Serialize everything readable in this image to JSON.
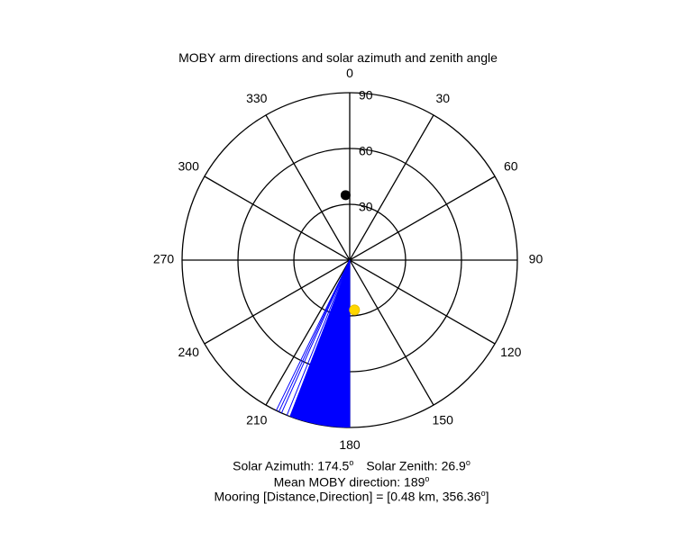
{
  "chart_data": {
    "type": "polar",
    "title": "MOBY arm directions and solar azimuth and zenith angle",
    "orientation": "clockwise, 0 at top",
    "radial_axis": {
      "label_values": [
        "90",
        "60",
        "30"
      ],
      "rings": [
        30,
        60,
        90
      ],
      "rmax": 90
    },
    "angle_ticks": [
      "0",
      "30",
      "60",
      "90",
      "120",
      "150",
      "180",
      "210",
      "240",
      "270",
      "300",
      "330"
    ],
    "series": [
      {
        "marker": "line",
        "color": "#0000ff",
        "kind": "arm_directions",
        "direction_range_deg": [
          180,
          206
        ],
        "sample_directions_deg": [
          180,
          181,
          182,
          183,
          184,
          185,
          186,
          187,
          188,
          189,
          190,
          191,
          192,
          193,
          194,
          195,
          196,
          197,
          198,
          200,
          202,
          204,
          205,
          206
        ],
        "length": 90
      },
      {
        "marker": "dot",
        "color": "#ffd700",
        "kind": "sun",
        "azimuth_deg": 174.5,
        "zenith_deg": 26.9
      },
      {
        "marker": "dot",
        "color": "#000000",
        "kind": "mooring",
        "direction_deg": 356.36,
        "radius": 35
      }
    ],
    "annotations": {
      "solar_azimuth_label": "Solar Azimuth: 174.5",
      "solar_zenith_label": "Solar Zenith: 26.9",
      "mean_direction_label": "Mean MOBY direction: 189",
      "mooring_label": "Mooring [Distance,Direction] = [0.48 km, 356.36",
      "mooring_label_end": "]",
      "degree_symbol": "o"
    }
  }
}
